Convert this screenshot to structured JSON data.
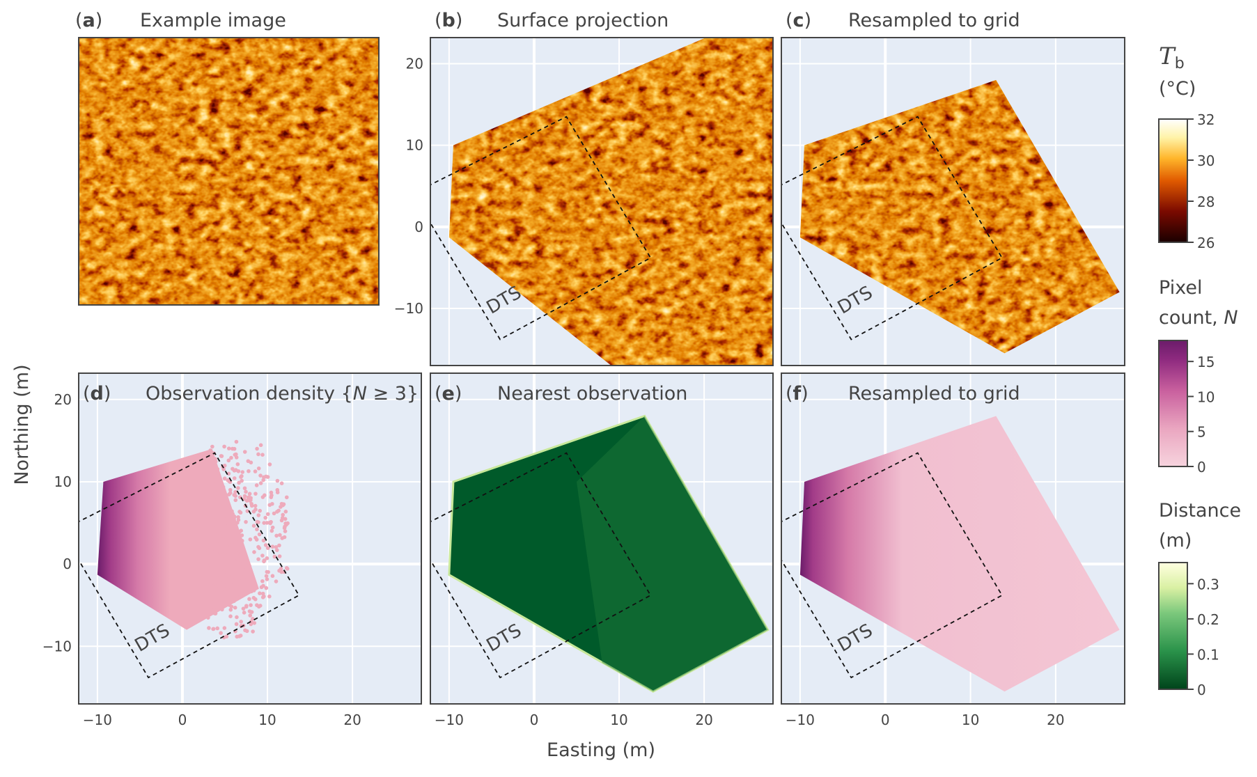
{
  "chart_data": {
    "type": "heatmap",
    "xlabel": "Easting (m)",
    "ylabel": "Northing (m)",
    "xlim": [
      -12.2,
      28.1
    ],
    "ylim": [
      -17,
      23.2
    ],
    "xticks": [
      -10,
      0,
      10,
      20
    ],
    "yticks": [
      -10,
      0,
      10,
      20
    ],
    "grid": true,
    "dts_label": "DTS",
    "dts_outline": [
      [
        -12.5,
        5
      ],
      [
        3.8,
        13.5
      ],
      [
        13.7,
        -3.8
      ],
      [
        -4,
        -13.8
      ],
      [
        -12.5,
        1
      ]
    ],
    "footprint_raw": [
      [
        -9.5,
        10
      ],
      [
        40,
        32
      ],
      [
        42,
        -12
      ],
      [
        20,
        -26
      ],
      [
        -10,
        -1.3
      ]
    ],
    "footprint_grid": [
      [
        -9.5,
        10
      ],
      [
        13,
        18
      ],
      [
        27.5,
        -8
      ],
      [
        14,
        -15.5
      ],
      [
        -10,
        -1.3
      ]
    ],
    "footprint_dense": [
      [
        -9.3,
        10
      ],
      [
        3.5,
        14
      ],
      [
        9,
        -3
      ],
      [
        0.5,
        -8
      ],
      [
        -10,
        -1.3
      ]
    ],
    "panels": [
      {
        "label": "a",
        "title": "Example image",
        "content": "thermal image",
        "colorbar": "Tb"
      },
      {
        "label": "b",
        "title": "Surface projection",
        "content": "thermal",
        "colorbar": "Tb"
      },
      {
        "label": "c",
        "title": "Resampled to grid",
        "content": "thermal",
        "colorbar": "Tb"
      },
      {
        "label": "d",
        "title_pre": "Observation density {",
        "title_var": "N",
        "title_post": " ≥ 3}",
        "content": "pixel count",
        "colorbar": "N"
      },
      {
        "label": "e",
        "title": "Nearest observation",
        "content": "distance",
        "colorbar": "Distance"
      },
      {
        "label": "f",
        "title": "Resampled to grid",
        "content": "pixel count",
        "colorbar": "N"
      }
    ],
    "colorbars": [
      {
        "id": "Tb",
        "title_var": "T",
        "title_sub": "b",
        "title_unit": "(°C)",
        "range": [
          26,
          32
        ],
        "ticks": [
          26,
          28,
          30,
          32
        ],
        "colorscale": [
          "#1a0000",
          "#7a0a00",
          "#e05a00",
          "#ffb52a",
          "#fff7cc",
          "#ffffff"
        ]
      },
      {
        "id": "N",
        "title_line1": "Pixel",
        "title_line2": "count, ",
        "title_var": "N",
        "range": [
          0,
          18
        ],
        "ticks": [
          0,
          5,
          10,
          15
        ],
        "colorscale": [
          "#f7d4de",
          "#eaa6c0",
          "#c9609e",
          "#8e2a7f",
          "#6b1c6a"
        ]
      },
      {
        "id": "Distance",
        "title_line1": "Distance",
        "title_line2": "(m)",
        "range": [
          0,
          0.36
        ],
        "ticks": [
          0,
          0.1,
          0.2,
          0.3
        ],
        "colorscale": [
          "#00441b",
          "#2a924a",
          "#7bc87c",
          "#d9f0a3",
          "#ffffe0"
        ]
      }
    ]
  },
  "colors": {
    "plot_bg": "#e5ecf6",
    "grid": "#ffffff",
    "frame": "#444444"
  }
}
